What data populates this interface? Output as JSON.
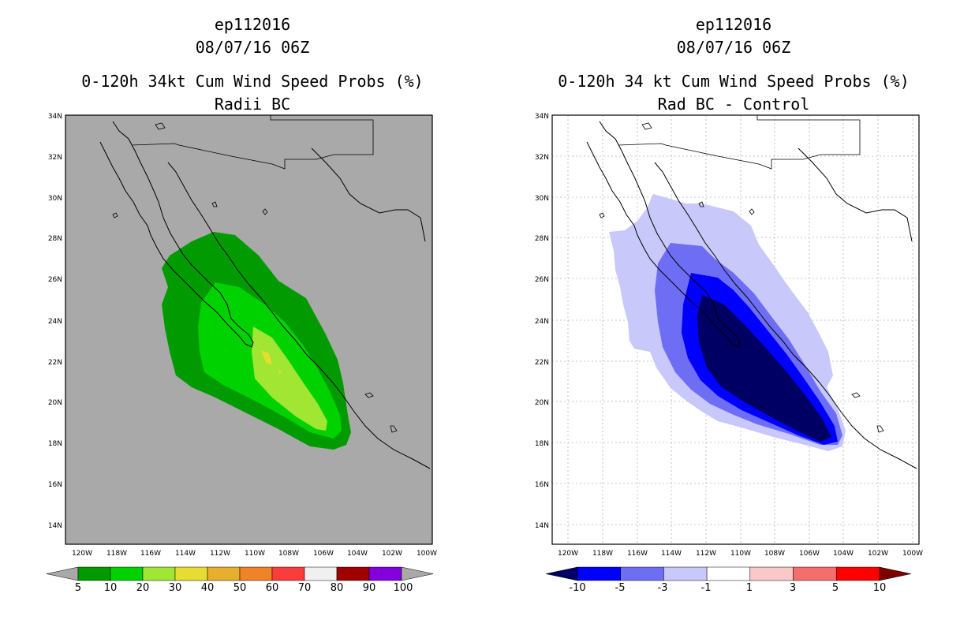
{
  "left_panel": {
    "title_lines": [
      "ep112016",
      "08/07/16 06Z",
      "0-120h 34kt Cum Wind Speed Probs (%)",
      "Radii BC"
    ],
    "background_color": "#a9a9a9",
    "lat_labels": [
      "34N",
      "32N",
      "30N",
      "28N",
      "26N",
      "24N",
      "22N",
      "20N",
      "18N",
      "16N",
      "14N"
    ],
    "lon_labels": [
      "120W",
      "118W",
      "116W",
      "114W",
      "112W",
      "110W",
      "108W",
      "106W",
      "104W",
      "102W",
      "100W"
    ],
    "colorbar": {
      "labels": [
        "5",
        "10",
        "20",
        "30",
        "40",
        "50",
        "60",
        "70",
        "80",
        "90",
        "100"
      ],
      "colors": [
        "#019b01",
        "#00d200",
        "#a0e632",
        "#e6dc32",
        "#e6af2d",
        "#f08228",
        "#fa3c3c",
        "#f0f0f0",
        "#a00000",
        "#8200dc"
      ],
      "under_color": "#a9a9a9",
      "over_color": "#a9a9a9"
    },
    "shading_colors": [
      "#019b01",
      "#00d200",
      "#a0e632",
      "#e6dc32"
    ]
  },
  "right_panel": {
    "title_lines": [
      "ep112016",
      "08/07/16 06Z",
      "0-120h 34 kt Cum Wind Speed Probs (%)",
      "Rad BC - Control"
    ],
    "background_color": "#ffffff",
    "lat_labels": [
      "34N",
      "32N",
      "30N",
      "28N",
      "26N",
      "24N",
      "22N",
      "20N",
      "18N",
      "16N",
      "14N"
    ],
    "lon_labels": [
      "120W",
      "118W",
      "116W",
      "114W",
      "112W",
      "110W",
      "108W",
      "106W",
      "104W",
      "102W",
      "100W"
    ],
    "colorbar": {
      "labels": [
        "-10",
        "-5",
        "-3",
        "-1",
        "1",
        "3",
        "5",
        "10"
      ],
      "colors": [
        "#0000ff",
        "#6e6ef5",
        "#c8c8fa",
        "#ffffff",
        "#fac8c8",
        "#f56e6e",
        "#ff0000"
      ],
      "under_color": "#000064",
      "over_color": "#7d0000"
    },
    "shading_colors": [
      "#c8c8fa",
      "#6e6ef5",
      "#0000ff",
      "#000064"
    ]
  }
}
